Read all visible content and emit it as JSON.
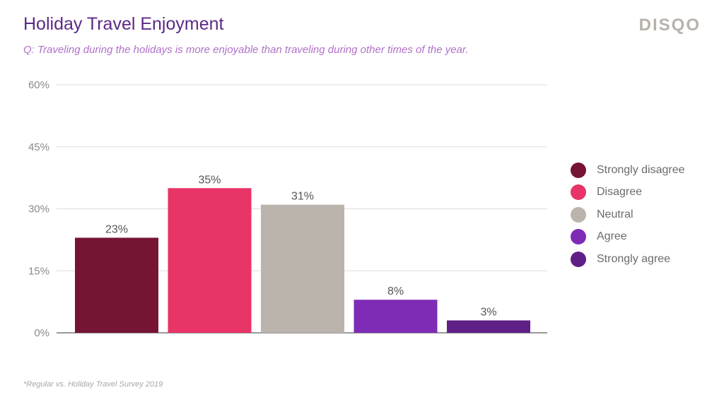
{
  "header": {
    "title": "Holiday Travel Enjoyment",
    "subtitle": "Q: Traveling during the holidays is more enjoyable than traveling during other times of the year.",
    "brand": "DISQO"
  },
  "footnote": "*Regular vs. Holiday Travel Survey 2019",
  "chart_data": {
    "type": "bar",
    "categories": [
      "Strongly disagree",
      "Disagree",
      "Neutral",
      "Agree",
      "Strongly agree"
    ],
    "values": [
      23,
      35,
      31,
      8,
      3
    ],
    "data_labels": [
      "23%",
      "35%",
      "31%",
      "8%",
      "3%"
    ],
    "colors": [
      "#761434",
      "#e83466",
      "#bbb4ad",
      "#7e2bb5",
      "#5e1f87"
    ],
    "ylim": [
      0,
      60
    ],
    "yticks": [
      0,
      15,
      30,
      45,
      60
    ],
    "ytick_labels": [
      "0%",
      "15%",
      "30%",
      "45%",
      "60%"
    ],
    "grid": true,
    "legend": {
      "position": "right",
      "items": [
        "Strongly disagree",
        "Disagree",
        "Neutral",
        "Agree",
        "Strongly agree"
      ]
    }
  }
}
